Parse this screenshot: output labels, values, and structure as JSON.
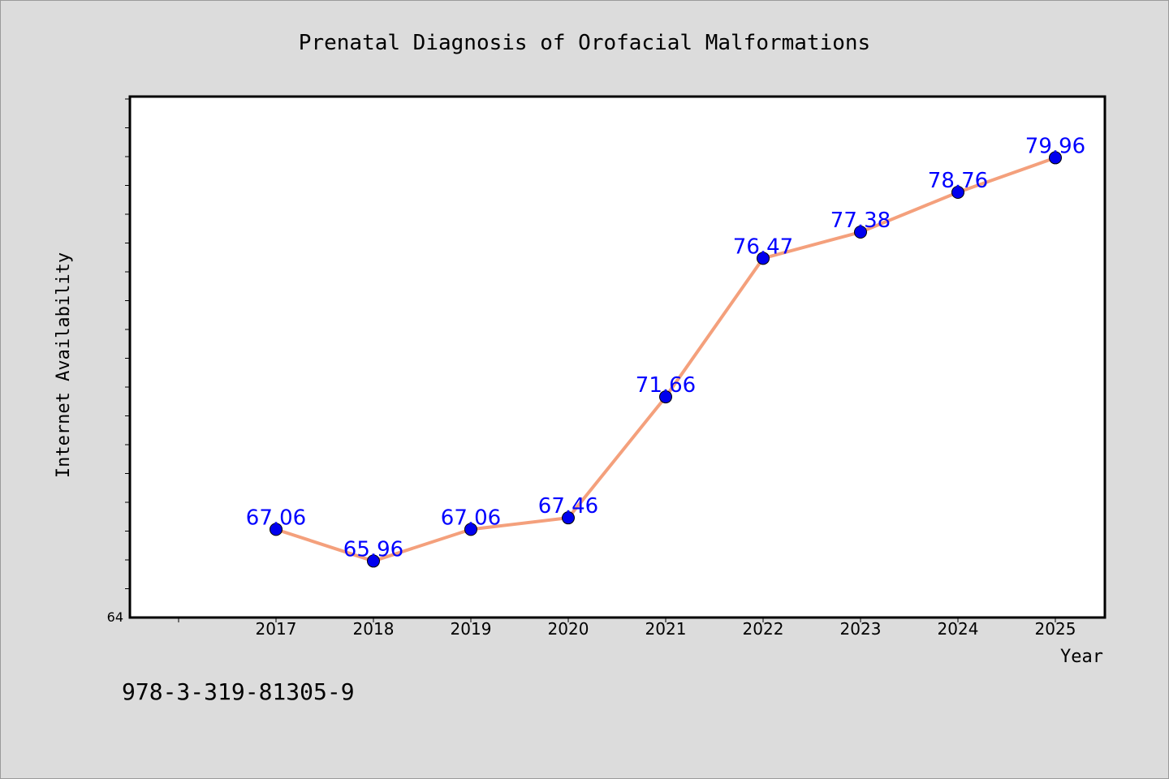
{
  "chart_data": {
    "type": "line",
    "title": "Prenatal Diagnosis of Orofacial Malformations",
    "xlabel": "Year",
    "ylabel": "Internet Availability",
    "categories": [
      "2017",
      "2018",
      "2019",
      "2020",
      "2021",
      "2022",
      "2023",
      "2024",
      "2025"
    ],
    "series": [
      {
        "values": [
          67.06,
          65.96,
          67.06,
          67.46,
          71.66,
          76.47,
          77.38,
          78.76,
          79.96
        ]
      }
    ],
    "ylim": [
      64,
      82
    ],
    "y_tick_labels": [
      "64"
    ],
    "grid": false,
    "line_color": "#f4a07c",
    "marker_color": "#0000ee",
    "label_color": "#0000ff",
    "background": "#dcdcdc",
    "plot_background": "#ffffff"
  },
  "footer": {
    "isbn": "978-3-319-81305-9"
  }
}
